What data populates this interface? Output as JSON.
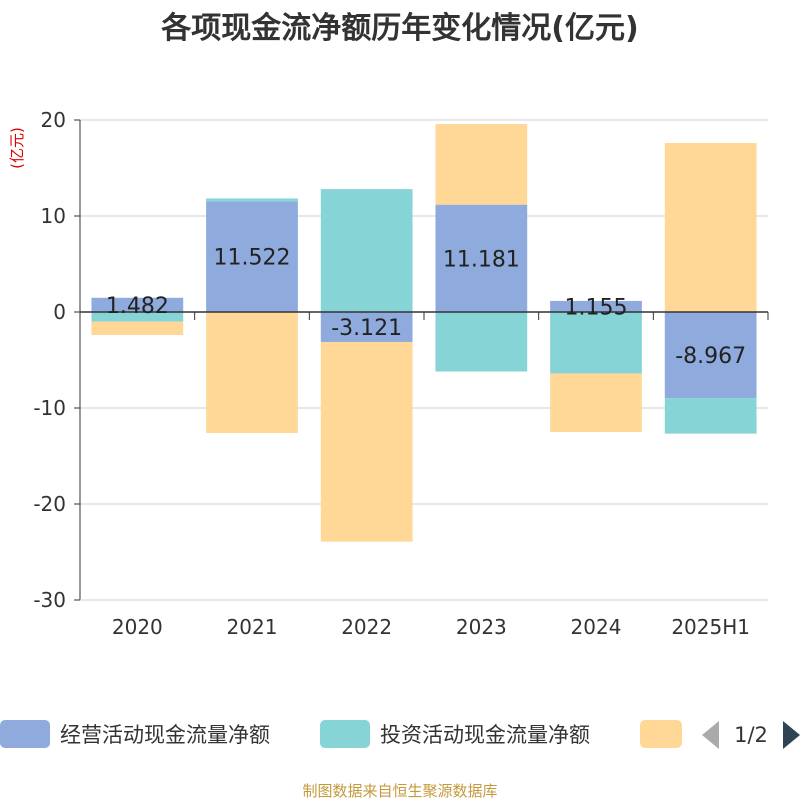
{
  "title": "各项现金流净额历年变化情况(亿元)",
  "unit": "(亿元)",
  "footer": "制图数据来自恒生聚源数据库",
  "legend": {
    "items": [
      {
        "name": "经营活动现金流量净额",
        "color": "#8faadc"
      },
      {
        "name": "投资活动现金流量净额",
        "color": "#86d4d6"
      },
      {
        "name": "",
        "color": "#ffd898"
      }
    ],
    "page": "1/2"
  },
  "chart_data": {
    "type": "bar",
    "stacked": true,
    "categories": [
      "2020",
      "2021",
      "2022",
      "2023",
      "2024",
      "2025H1"
    ],
    "ylim": [
      -30,
      20
    ],
    "yticks": [
      20,
      10,
      0,
      -10,
      -20,
      -30
    ],
    "grid": true,
    "legend_position": "bottom",
    "series": [
      {
        "name": "经营活动现金流量净额",
        "color": "#8faadc",
        "values": [
          1.482,
          11.522,
          -3.121,
          11.181,
          1.155,
          -8.967
        ],
        "labels": [
          "1.482",
          "11.522",
          "-3.121",
          "11.181",
          "1.155",
          "-8.967"
        ]
      },
      {
        "name": "投资活动现金流量净额",
        "color": "#86d4d6",
        "values": [
          -1.0,
          0.3,
          12.8,
          -6.2,
          -6.4,
          -3.7
        ]
      },
      {
        "color": "#ffd898",
        "values": [
          -1.4,
          -12.6,
          -20.8,
          8.4,
          -6.1,
          17.6
        ]
      }
    ]
  }
}
